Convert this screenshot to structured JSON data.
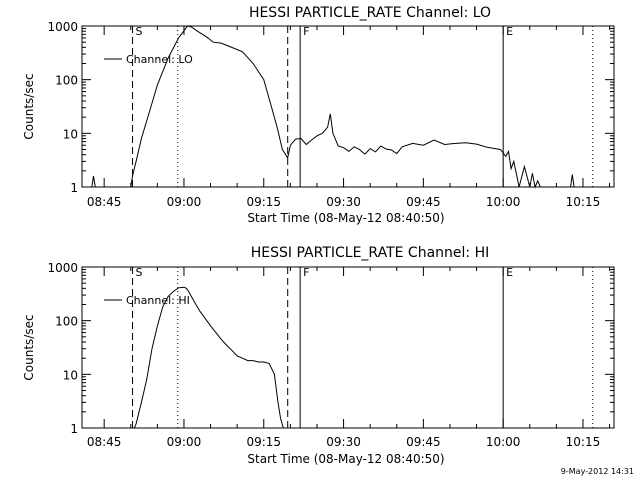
{
  "chart_data": [
    {
      "type": "line",
      "title": "HESSI PARTICLE_RATE Channel: LO",
      "ylabel": "Counts/sec",
      "xlabel": "Start Time (08-May-12 08:40:50)",
      "y_scale": "log",
      "ylim": [
        1,
        1000
      ],
      "yticks": [
        "1",
        "10",
        "100",
        "1000"
      ],
      "xlim": [
        "08:40:50",
        "10:20:50"
      ],
      "xticks": [
        "08:45",
        "09:00",
        "09:15",
        "09:30",
        "09:45",
        "10:00",
        "10:15"
      ],
      "legend": "Channel: LO",
      "legend_placement": "top-left",
      "markers": [
        {
          "label": "S",
          "time": "08:50:20",
          "style": "dashed"
        },
        {
          "label": "",
          "time": "08:58:50",
          "style": "dotted"
        },
        {
          "label": "",
          "time": "09:19:30",
          "style": "dashed"
        },
        {
          "label": "F",
          "time": "09:21:50",
          "style": "solid"
        },
        {
          "label": "E",
          "time": "10:00:00",
          "style": "solid"
        },
        {
          "label": "",
          "time": "10:16:50",
          "style": "dotted"
        }
      ],
      "series": [
        {
          "x": [
            "08:42:40",
            "08:43:00",
            "08:43:20",
            "08:50:00",
            "08:50:20",
            "08:51:00",
            "08:52:00",
            "08:53:30",
            "08:55:00",
            "08:57:00",
            "08:59:00",
            "09:00:40",
            "09:01:30",
            "09:02:30",
            "09:03:30",
            "09:04:30",
            "09:05:30",
            "09:07:00",
            "09:09:00",
            "09:11:00",
            "09:13:00",
            "09:15:00",
            "09:16:30",
            "09:17:30",
            "09:18:30",
            "09:19:30",
            "09:20:00",
            "09:21:00",
            "09:22:00",
            "09:23:00",
            "09:24:00",
            "09:25:00",
            "09:26:00",
            "09:27:00",
            "09:27:30",
            "09:28:00",
            "09:29:00",
            "09:30:00",
            "09:31:00",
            "09:32:00",
            "09:33:00",
            "09:34:00",
            "09:35:00",
            "09:36:00",
            "09:37:00",
            "09:38:00",
            "09:39:00",
            "09:40:00",
            "09:41:00",
            "09:43:00",
            "09:45:00",
            "09:47:00",
            "09:49:00",
            "09:51:00",
            "09:53:00",
            "09:55:00",
            "09:57:00",
            "09:58:30",
            "09:59:30",
            "10:00:30",
            "10:01:00",
            "10:01:30",
            "10:02:00",
            "10:03:00",
            "10:04:00",
            "10:05:00",
            "10:05:30",
            "10:06:00",
            "10:06:30",
            "10:07:00",
            "10:07:30",
            "10:12:40",
            "10:13:00",
            "10:13:20"
          ],
          "y": [
            1,
            1.6,
            1,
            1,
            1.6,
            3,
            8,
            25,
            80,
            250,
            600,
            1000,
            950,
            800,
            700,
            600,
            500,
            480,
            400,
            330,
            200,
            100,
            30,
            13,
            5,
            3.5,
            6,
            7.8,
            8,
            6.2,
            7.5,
            9,
            10,
            13,
            23,
            10,
            5.8,
            5.4,
            4.6,
            5.6,
            5,
            4.1,
            5.2,
            4.5,
            5.8,
            5.1,
            4.9,
            4.2,
            5.6,
            6.5,
            6,
            7.5,
            6.2,
            6.5,
            6.7,
            6.3,
            5.5,
            5.2,
            5,
            3.7,
            4.6,
            2.2,
            3,
            1,
            2.4,
            1,
            1.8,
            1,
            1.3,
            1,
            1,
            1,
            1.7,
            1
          ]
        }
      ]
    },
    {
      "type": "line",
      "title": "HESSI PARTICLE_RATE Channel: HI",
      "ylabel": "Counts/sec",
      "xlabel": "Start Time (08-May-12 08:40:50)",
      "y_scale": "log",
      "ylim": [
        1,
        1000
      ],
      "yticks": [
        "1",
        "10",
        "100",
        "1000"
      ],
      "xlim": [
        "08:40:50",
        "10:20:50"
      ],
      "xticks": [
        "08:45",
        "09:00",
        "09:15",
        "09:30",
        "09:45",
        "10:00",
        "10:15"
      ],
      "legend": "Channel: HI",
      "legend_placement": "top-left",
      "markers": [
        {
          "label": "S",
          "time": "08:50:20",
          "style": "dashed"
        },
        {
          "label": "",
          "time": "08:58:50",
          "style": "dotted"
        },
        {
          "label": "",
          "time": "09:19:30",
          "style": "dashed"
        },
        {
          "label": "F",
          "time": "09:21:50",
          "style": "solid"
        },
        {
          "label": "E",
          "time": "10:00:00",
          "style": "solid"
        },
        {
          "label": "",
          "time": "10:16:50",
          "style": "dotted"
        }
      ],
      "series": [
        {
          "x": [
            "08:50:40",
            "08:51:00",
            "08:52:00",
            "08:53:00",
            "08:54:00",
            "08:55:00",
            "08:56:00",
            "08:57:00",
            "08:58:00",
            "08:59:00",
            "09:00:00",
            "09:00:30",
            "09:01:00",
            "09:02:00",
            "09:03:00",
            "09:04:00",
            "09:05:00",
            "09:06:00",
            "09:07:00",
            "09:08:00",
            "09:09:00",
            "09:10:00",
            "09:11:00",
            "09:12:00",
            "09:13:00",
            "09:14:00",
            "09:15:00",
            "09:16:00",
            "09:17:00",
            "09:17:40",
            "09:18:10",
            "09:18:40"
          ],
          "y": [
            1,
            1.2,
            3,
            8,
            30,
            80,
            180,
            280,
            350,
            410,
            420,
            400,
            330,
            220,
            150,
            110,
            80,
            60,
            45,
            35,
            28,
            22,
            20,
            18,
            18,
            17,
            17,
            16,
            10,
            3,
            1.5,
            1
          ]
        }
      ]
    }
  ],
  "footer": {
    "timestamp": "9-May-2012 14:31"
  }
}
